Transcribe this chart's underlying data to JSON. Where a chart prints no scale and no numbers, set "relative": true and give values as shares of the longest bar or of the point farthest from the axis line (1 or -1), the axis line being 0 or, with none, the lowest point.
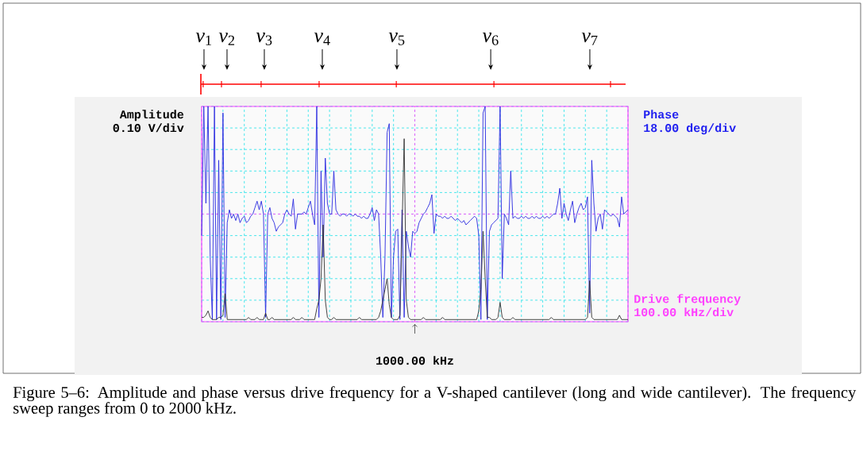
{
  "chart_data": {
    "type": "line",
    "relative": true,
    "xlabel": "Drive frequency",
    "ylabel": "Amplitude",
    "y2label": "Phase",
    "categories": [
      null,
      null,
      null,
      null,
      null,
      null,
      null,
      null,
      null,
      null,
      null,
      null,
      null,
      null,
      null,
      null,
      null,
      null,
      null,
      null,
      null,
      null,
      null,
      null,
      null,
      null,
      null,
      null,
      null,
      null,
      null,
      null,
      null,
      null,
      null,
      null,
      null,
      null,
      null,
      null,
      null,
      null,
      null,
      null,
      null,
      null,
      null,
      null,
      null,
      null,
      null,
      null,
      null,
      null,
      null,
      null,
      null,
      null,
      null,
      null,
      null,
      null,
      null,
      null,
      null,
      null,
      null,
      null,
      null,
      null,
      null,
      null,
      null,
      null,
      null,
      null,
      null,
      null,
      null,
      null,
      null,
      null,
      null,
      null,
      null,
      null,
      null,
      null,
      null,
      null,
      null,
      null,
      null,
      null,
      null,
      null,
      null,
      null,
      null,
      null,
      null,
      null,
      null,
      null,
      null,
      null,
      null,
      null,
      null,
      null,
      null,
      null,
      null,
      null,
      null,
      null,
      null,
      null,
      null,
      null,
      null,
      null,
      null,
      null,
      null,
      null,
      null,
      null,
      null,
      null,
      null,
      null,
      null,
      null,
      null,
      null,
      null,
      null,
      null,
      null,
      null,
      null,
      null,
      null,
      null,
      null,
      null,
      null,
      null,
      null,
      null,
      null,
      null,
      null,
      null,
      null,
      null,
      null,
      null,
      null,
      null,
      null,
      null,
      null,
      null,
      null,
      null,
      null,
      null,
      null,
      null,
      null,
      null,
      null,
      null,
      null,
      null,
      null,
      null,
      null,
      null,
      null,
      null,
      null,
      null,
      null,
      null,
      null,
      null,
      null,
      null,
      null,
      null,
      null,
      null,
      null,
      null,
      null,
      null,
      null,
      null
    ],
    "grid": true,
    "ref_lines": [
      {
        "axis": "y",
        "value": 0.5,
        "color": "#ff40ff",
        "line_style": "dashed"
      }
    ],
    "annotations": [
      "0.10 V/div",
      "18.00 deg/div",
      "100.00 kHz/div",
      "1000.00 kHz",
      "Figure 5–6: Amplitude and phase versus drive frequency for a V-shaped cantilever (long and wide cantilever). The frequency sweep ranges from 0 to 2000 kHz.",
      "*v*$_{1}$",
      "*v*$_{2}$",
      "*v*$_{3}$",
      "*v*$_{4}$",
      "*v*$_{5}$",
      "*v*$_{6}$",
      "*v*$_{7}$"
    ],
    "series": [
      {
        "color": "#2828e0",
        "values": [
          0.4,
          1.0,
          0.55,
          1.0,
          0.3,
          0.01,
          1.0,
          0.01,
          0.75,
          0.01,
          0.97,
          0.02,
          0.46,
          0.52,
          0.48,
          0.5,
          0.47,
          0.5,
          0.46,
          0.48,
          0.49,
          0.46,
          0.47,
          0.49,
          0.5,
          0.53,
          0.56,
          0.52,
          0.56,
          0.5,
          0.02,
          0.5,
          0.53,
          0.48,
          0.46,
          0.42,
          0.44,
          0.45,
          0.46,
          0.5,
          0.52,
          0.5,
          0.49,
          0.57,
          0.43,
          0.5,
          0.5,
          0.5,
          0.51,
          0.5,
          0.53,
          0.56,
          0.5,
          0.45,
          1.0,
          0.02,
          0.7,
          0.3,
          0.76,
          0.55,
          0.5,
          0.5,
          0.7,
          0.52,
          0.5,
          0.49,
          0.5,
          0.5,
          0.49,
          0.5,
          0.5,
          0.49,
          0.5,
          0.49,
          0.49,
          0.48,
          0.49,
          0.48,
          0.48,
          0.5,
          0.53,
          0.47,
          0.52,
          0.5,
          0.3,
          0.02,
          0.3,
          0.88,
          0.92,
          0.02,
          0.3,
          0.42,
          0.43,
          0.01,
          0.52,
          0.02,
          0.42,
          0.35,
          0.3,
          0.42,
          0.41,
          0.42,
          0.46,
          0.48,
          0.5,
          0.51,
          0.53,
          0.55,
          0.59,
          0.41,
          0.5,
          0.49,
          0.49,
          0.48,
          0.49,
          0.48,
          0.48,
          0.49,
          0.48,
          0.47,
          0.48,
          0.47,
          0.46,
          0.47,
          0.45,
          0.46,
          0.47,
          0.48,
          0.49,
          0.48,
          0.4,
          0.01,
          0.97,
          1.0,
          0.01,
          0.42,
          0.45,
          0.46,
          0.47,
          0.48,
          1.0,
          0.2,
          0.5,
          0.48,
          0.45,
          0.7,
          0.48,
          0.49,
          0.48,
          0.48,
          0.49,
          0.48,
          0.49,
          0.48,
          0.48,
          0.49,
          0.48,
          0.49,
          0.48,
          0.48,
          0.49,
          0.48,
          0.49,
          0.48,
          0.49,
          0.5,
          0.5,
          0.55,
          0.62,
          0.48,
          0.55,
          0.5,
          0.47,
          0.52,
          0.56,
          0.46,
          0.5,
          0.53,
          0.55,
          0.52,
          0.53,
          0.58,
          0.04,
          0.75,
          0.55,
          0.42,
          0.48,
          0.5,
          0.43,
          0.52,
          0.51,
          0.5,
          0.49,
          0.5,
          0.49,
          0.48,
          0.44,
          0.58,
          0.5,
          0.51,
          0.52
        ]
      },
      {
        "color": "#303030",
        "values": [
          0.02,
          0.02,
          0.03,
          0.05,
          0.02,
          0.01,
          0.01,
          0.01,
          0.02,
          0.02,
          0.03,
          0.13,
          0.01,
          0.01,
          0.01,
          0.01,
          0.01,
          0.01,
          0.01,
          0.01,
          0.01,
          0.01,
          0.02,
          0.01,
          0.01,
          0.01,
          0.02,
          0.01,
          0.01,
          0.01,
          0.04,
          0.01,
          0.01,
          0.02,
          0.01,
          0.01,
          0.01,
          0.01,
          0.01,
          0.01,
          0.01,
          0.01,
          0.01,
          0.02,
          0.01,
          0.01,
          0.01,
          0.02,
          0.01,
          0.01,
          0.01,
          0.01,
          0.01,
          0.01,
          0.06,
          0.1,
          0.2,
          0.45,
          0.1,
          0.02,
          0.01,
          0.01,
          0.02,
          0.01,
          0.01,
          0.01,
          0.01,
          0.01,
          0.01,
          0.01,
          0.01,
          0.01,
          0.01,
          0.01,
          0.02,
          0.01,
          0.01,
          0.01,
          0.01,
          0.01,
          0.01,
          0.01,
          0.01,
          0.02,
          0.05,
          0.1,
          0.15,
          0.2,
          0.08,
          0.02,
          0.01,
          0.01,
          0.01,
          0.03,
          0.43,
          0.85,
          0.1,
          0.02,
          0.01,
          0.01,
          0.01,
          0.01,
          0.01,
          0.01,
          0.02,
          0.01,
          0.01,
          0.01,
          0.01,
          0.01,
          0.01,
          0.01,
          0.01,
          0.02,
          0.01,
          0.01,
          0.01,
          0.01,
          0.01,
          0.01,
          0.01,
          0.01,
          0.01,
          0.01,
          0.01,
          0.01,
          0.01,
          0.01,
          0.01,
          0.01,
          0.05,
          0.15,
          0.42,
          0.2,
          0.02,
          0.02,
          0.01,
          0.01,
          0.01,
          0.02,
          0.09,
          0.02,
          0.01,
          0.01,
          0.01,
          0.01,
          0.02,
          0.01,
          0.01,
          0.01,
          0.01,
          0.01,
          0.01,
          0.01,
          0.01,
          0.01,
          0.01,
          0.01,
          0.01,
          0.01,
          0.01,
          0.01,
          0.01,
          0.01,
          0.02,
          0.01,
          0.01,
          0.01,
          0.01,
          0.01,
          0.01,
          0.01,
          0.01,
          0.01,
          0.01,
          0.01,
          0.01,
          0.01,
          0.01,
          0.01,
          0.01,
          0.02,
          0.19,
          0.02,
          0.01,
          0.01,
          0.01,
          0.01,
          0.01,
          0.01,
          0.01,
          0.01,
          0.01,
          0.01,
          0.01,
          0.01,
          0.03,
          0.01,
          0.01,
          0.01,
          0.01
        ]
      }
    ]
  }
}
